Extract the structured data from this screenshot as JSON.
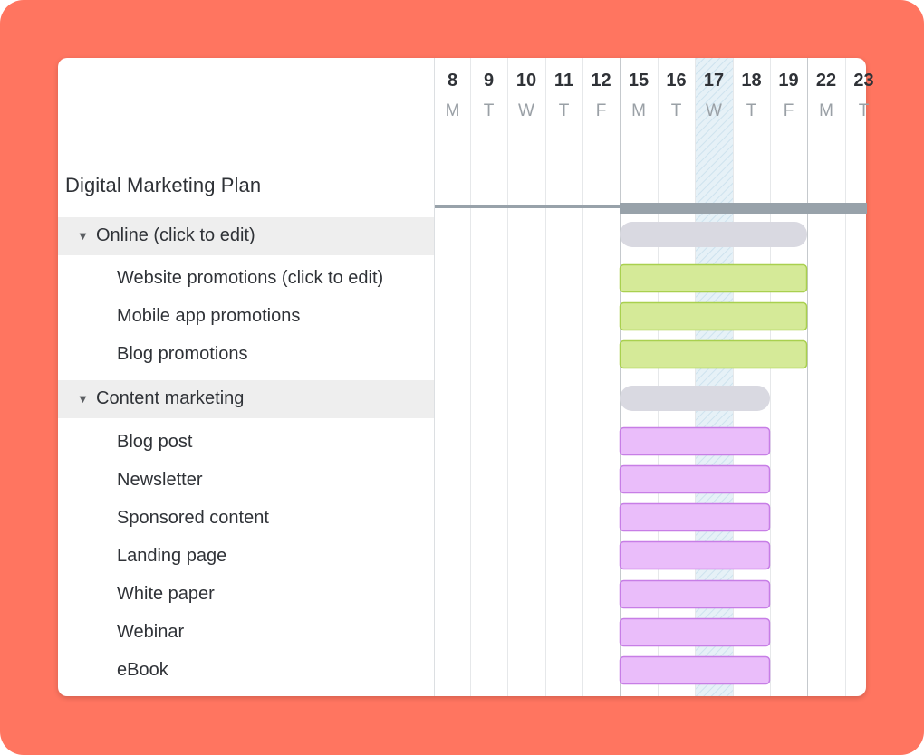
{
  "plan_title": "Digital Marketing Plan",
  "groups": [
    {
      "label": "Online (click to edit)",
      "icon": "triangle-down-icon",
      "bar_color": "#d9d9e1",
      "task_color": "#d5ea98",
      "task_border": "#a9d04f",
      "tasks": [
        "Website promotions (click to edit)",
        "Mobile app promotions",
        "Blog promotions"
      ]
    },
    {
      "label": "Content marketing",
      "icon": "triangle-down-icon",
      "bar_color": "#d9d9e1",
      "task_color": "#eabdfa",
      "task_border": "#c77ee6",
      "tasks": [
        "Blog post",
        "Newsletter",
        "Sponsored content",
        "Landing page",
        "White paper",
        "Webinar",
        "eBook"
      ]
    }
  ],
  "timeline": {
    "days": [
      {
        "num": "8",
        "letter": "M"
      },
      {
        "num": "9",
        "letter": "T"
      },
      {
        "num": "10",
        "letter": "W"
      },
      {
        "num": "11",
        "letter": "T"
      },
      {
        "num": "12",
        "letter": "F"
      },
      {
        "num": "15",
        "letter": "M"
      },
      {
        "num": "16",
        "letter": "T"
      },
      {
        "num": "17",
        "letter": "W"
      },
      {
        "num": "18",
        "letter": "T"
      },
      {
        "num": "19",
        "letter": "F"
      },
      {
        "num": "22",
        "letter": "M"
      },
      {
        "num": "23",
        "letter": "T"
      }
    ],
    "today": "17",
    "colors": {
      "frame": "#ff7560",
      "today_highlight": "#dcecf4",
      "summary_bar": "#98a2aa"
    }
  }
}
